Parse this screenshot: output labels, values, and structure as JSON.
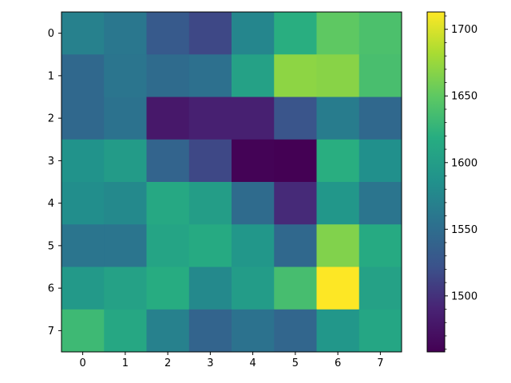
{
  "chart_data": {
    "type": "heatmap",
    "title": "",
    "xlabel": "",
    "ylabel": "",
    "x_ticks": [
      "0",
      "1",
      "2",
      "3",
      "4",
      "5",
      "6",
      "7"
    ],
    "y_ticks": [
      "0",
      "1",
      "2",
      "3",
      "4",
      "5",
      "6",
      "7"
    ],
    "colormap": "viridis",
    "vmin": 1458,
    "vmax": 1713,
    "colorbar": {
      "ticks": [
        1500,
        1550,
        1600,
        1650,
        1700
      ],
      "tick_labels": [
        "1500",
        "1550",
        "1600",
        "1650",
        "1700"
      ],
      "minor_step": 10
    },
    "grid": false,
    "values": [
      [
        1570,
        1560,
        1530,
        1515,
        1575,
        1620,
        1650,
        1640
      ],
      [
        1545,
        1558,
        1548,
        1553,
        1605,
        1670,
        1668,
        1638
      ],
      [
        1545,
        1555,
        1480,
        1487,
        1487,
        1525,
        1565,
        1545
      ],
      [
        1588,
        1597,
        1540,
        1515,
        1460,
        1458,
        1620,
        1585
      ],
      [
        1583,
        1578,
        1613,
        1600,
        1548,
        1495,
        1593,
        1558
      ],
      [
        1558,
        1558,
        1608,
        1615,
        1593,
        1545,
        1665,
        1615
      ],
      [
        1595,
        1605,
        1618,
        1578,
        1598,
        1637,
        1713,
        1605
      ],
      [
        1632,
        1612,
        1570,
        1540,
        1555,
        1542,
        1593,
        1610
      ]
    ]
  }
}
